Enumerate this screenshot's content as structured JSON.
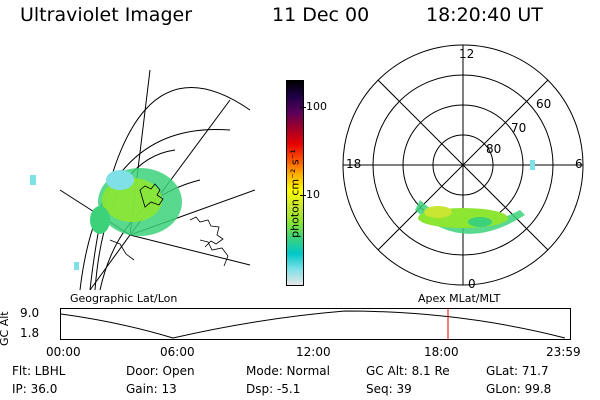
{
  "header": {
    "title": "Ultraviolet Imager",
    "date": "11 Dec 00",
    "time": "18:20:40 UT"
  },
  "colorbar": {
    "unit_label": "photon cm⁻² s⁻¹",
    "ticks": [
      "100",
      "10"
    ],
    "colors": [
      "#e6e6e6",
      "#7fe0e8",
      "#00c8c8",
      "#3cd27a",
      "#8ce632",
      "#c8e632",
      "#ffff00",
      "#ffb400",
      "#ff5000",
      "#e60000",
      "#a0002a",
      "#5a005a",
      "#1e0046",
      "#000000"
    ]
  },
  "geo_panel": {
    "label": "Geographic Lat/Lon"
  },
  "apex_panel": {
    "label": "Apex MLat/MLT",
    "mlt_labels": {
      "top": "12",
      "left": "18",
      "right": "6",
      "bottom": "0"
    },
    "lat_labels": [
      "60",
      "70",
      "80"
    ]
  },
  "altitude_strip": {
    "axis_title": "GC Alt",
    "y_ticks": [
      "9.0",
      "1.8"
    ],
    "time_labels": [
      "00:00",
      "06:00",
      "12:00",
      "18:00",
      "23:59"
    ],
    "marker_time": "18:20:40",
    "marker_color": "#e60000"
  },
  "info": {
    "flt": "Flt: LBHL",
    "ip": "IP: 36.0",
    "door": "Door: Open",
    "gain": "Gain: 13",
    "mode": "Mode: Normal",
    "dsp": "Dsp:    -5.1",
    "gcalt": "GC Alt: 8.1 Re",
    "seq": "Seq: 39",
    "glat": "GLat:   71.7",
    "glon": "GLon:   99.8"
  }
}
